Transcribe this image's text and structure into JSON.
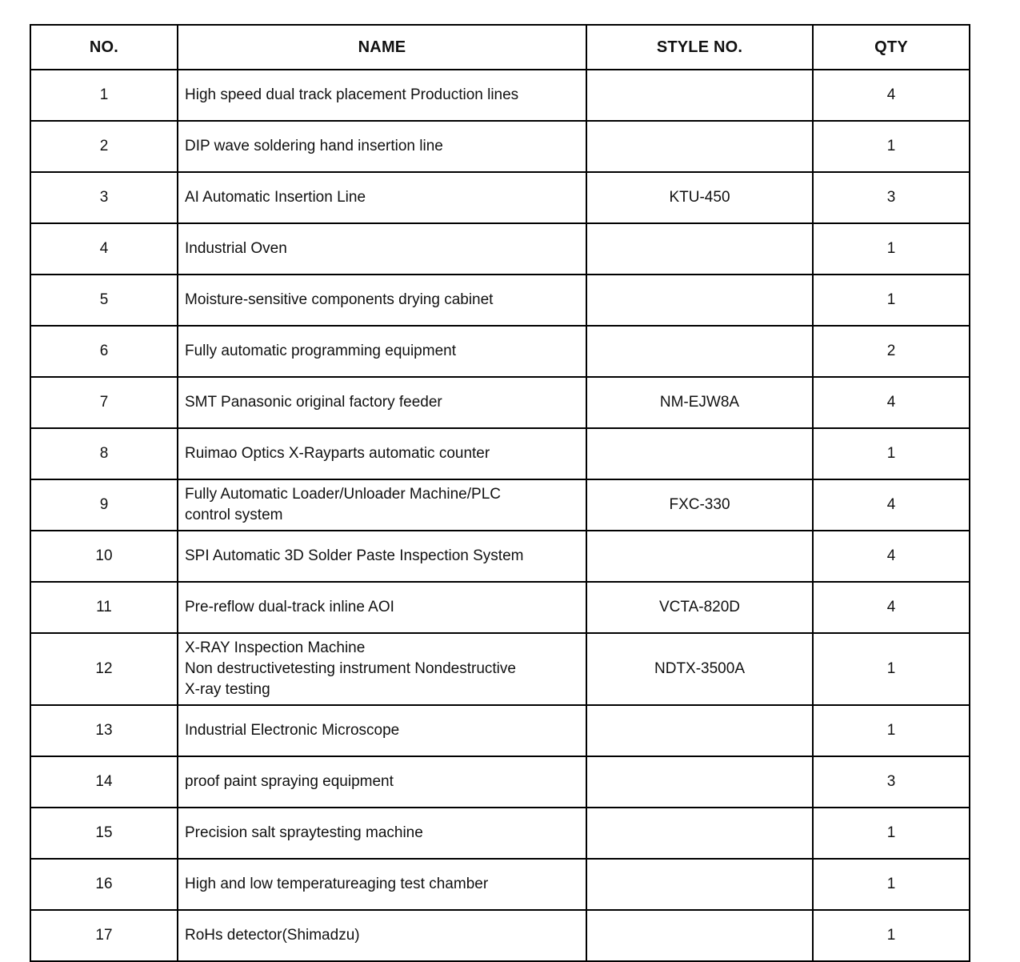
{
  "table": {
    "columns": [
      {
        "key": "no",
        "label": "NO."
      },
      {
        "key": "name",
        "label": "NAME"
      },
      {
        "key": "style",
        "label": "STYLE NO."
      },
      {
        "key": "qty",
        "label": "QTY"
      }
    ],
    "rows": [
      {
        "no": "1",
        "name": "High speed dual track placement Production lines",
        "style": "",
        "qty": "4"
      },
      {
        "no": "2",
        "name": "DIP wave soldering hand insertion line",
        "style": "",
        "qty": "1"
      },
      {
        "no": "3",
        "name": "AI Automatic Insertion Line",
        "style": "KTU-450",
        "qty": "3"
      },
      {
        "no": "4",
        "name": "Industrial Oven",
        "style": "",
        "qty": "1"
      },
      {
        "no": "5",
        "name": "Moisture-sensitive components drying cabinet",
        "style": "",
        "qty": "1"
      },
      {
        "no": "6",
        "name": "Fully automatic programming equipment",
        "style": "",
        "qty": "2"
      },
      {
        "no": "7",
        "name": "SMT Panasonic original factory feeder",
        "style": "NM-EJW8A",
        "qty": "4"
      },
      {
        "no": "8",
        "name": "Ruimao Optics X-Rayparts automatic counter",
        "style": "",
        "qty": "1"
      },
      {
        "no": "9",
        "name": "Fully Automatic Loader/Unloader Machine/PLC\ncontrol system",
        "style": "FXC-330",
        "qty": "4"
      },
      {
        "no": "10",
        "name": "SPI Automatic 3D Solder Paste Inspection System",
        "style": "",
        "qty": "4"
      },
      {
        "no": "11",
        "name": "Pre-reflow dual-track inline AOI",
        "style": "VCTA-820D",
        "qty": "4"
      },
      {
        "no": "12",
        "name": "X-RAY Inspection Machine\nNon destructivetesting instrument Nondestructive\nX-ray testing",
        "style": "NDTX-3500A",
        "qty": "1"
      },
      {
        "no": "13",
        "name": "Industrial Electronic Microscope",
        "style": "",
        "qty": "1"
      },
      {
        "no": "14",
        "name": "proof paint spraying equipment",
        "style": "",
        "qty": "3"
      },
      {
        "no": "15",
        "name": "Precision salt spraytesting machine",
        "style": "",
        "qty": "1"
      },
      {
        "no": "16",
        "name": "High and low temperatureaging test chamber",
        "style": "",
        "qty": "1"
      },
      {
        "no": "17",
        "name": "RoHs detector(Shimadzu)",
        "style": "",
        "qty": "1"
      }
    ]
  },
  "colors": {
    "border": "#000000",
    "text": "#111111",
    "background": "#ffffff"
  }
}
